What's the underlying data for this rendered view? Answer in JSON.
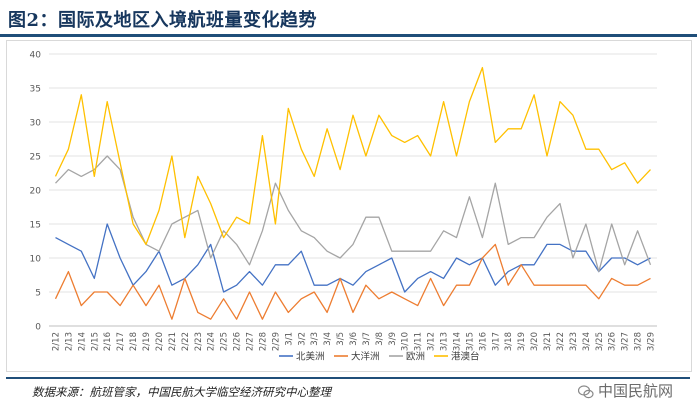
{
  "header": {
    "title": "图2：国际及地区入境航班量变化趋势"
  },
  "footer": {
    "source": "数据来源：航班管家，中国民航大学临空经济研究中心整理",
    "watermark": "中国民航网"
  },
  "colors": {
    "title": "#17375e",
    "rule": "#1f4e79"
  },
  "chart_data": {
    "type": "line",
    "ylim": [
      0,
      40
    ],
    "yticks": [
      0,
      5,
      10,
      15,
      20,
      25,
      30,
      35,
      40
    ],
    "grid": true,
    "legend": "bottom",
    "categories": [
      "2/12",
      "2/13",
      "2/14",
      "2/15",
      "2/16",
      "2/17",
      "2/18",
      "2/19",
      "2/20",
      "2/21",
      "2/22",
      "2/23",
      "2/24",
      "2/25",
      "2/26",
      "2/27",
      "2/28",
      "2/29",
      "3/1",
      "3/2",
      "3/3",
      "3/4",
      "3/5",
      "3/6",
      "3/7",
      "3/8",
      "3/9",
      "3/10",
      "3/11",
      "3/12",
      "3/13",
      "3/14",
      "3/15",
      "3/16",
      "3/17",
      "3/18",
      "3/19",
      "3/20",
      "3/21",
      "3/22",
      "3/23",
      "3/24",
      "3/25",
      "3/26",
      "3/27",
      "3/28",
      "3/29"
    ],
    "series": [
      {
        "name": "北美洲",
        "color": "#4472c4",
        "values": [
          13,
          12,
          11,
          7,
          15,
          10,
          6,
          8,
          11,
          6,
          7,
          9,
          12,
          5,
          6,
          8,
          6,
          9,
          9,
          11,
          6,
          6,
          7,
          6,
          8,
          9,
          10,
          5,
          7,
          8,
          7,
          10,
          9,
          10,
          6,
          8,
          9,
          9,
          12,
          12,
          11,
          11,
          8,
          10,
          10,
          9,
          10
        ]
      },
      {
        "name": "大洋洲",
        "color": "#ed7d31",
        "values": [
          4,
          8,
          3,
          5,
          5,
          3,
          6,
          3,
          6,
          1,
          7,
          2,
          1,
          4,
          1,
          5,
          1,
          5,
          2,
          4,
          5,
          2,
          7,
          2,
          6,
          4,
          5,
          4,
          3,
          7,
          3,
          6,
          6,
          10,
          12,
          6,
          9,
          6,
          6,
          6,
          6,
          6,
          4,
          7,
          6,
          6,
          7
        ]
      },
      {
        "name": "欧洲",
        "color": "#a5a5a5",
        "values": [
          21,
          23,
          22,
          23,
          25,
          23,
          16,
          12,
          11,
          15,
          16,
          17,
          10,
          14,
          12,
          9,
          14,
          21,
          17,
          14,
          13,
          11,
          10,
          12,
          16,
          16,
          11,
          11,
          11,
          11,
          14,
          13,
          19,
          13,
          21,
          12,
          13,
          13,
          16,
          18,
          10,
          15,
          8,
          15,
          9,
          14,
          9
        ]
      },
      {
        "name": "港澳台",
        "color": "#ffc000",
        "values": [
          22,
          26,
          34,
          22,
          33,
          24,
          15,
          12,
          17,
          25,
          13,
          22,
          18,
          13,
          16,
          15,
          28,
          15,
          32,
          26,
          22,
          29,
          23,
          31,
          25,
          31,
          28,
          27,
          28,
          25,
          33,
          25,
          33,
          38,
          27,
          29,
          29,
          34,
          25,
          33,
          31,
          26,
          26,
          23,
          24,
          21,
          23
        ]
      }
    ]
  }
}
